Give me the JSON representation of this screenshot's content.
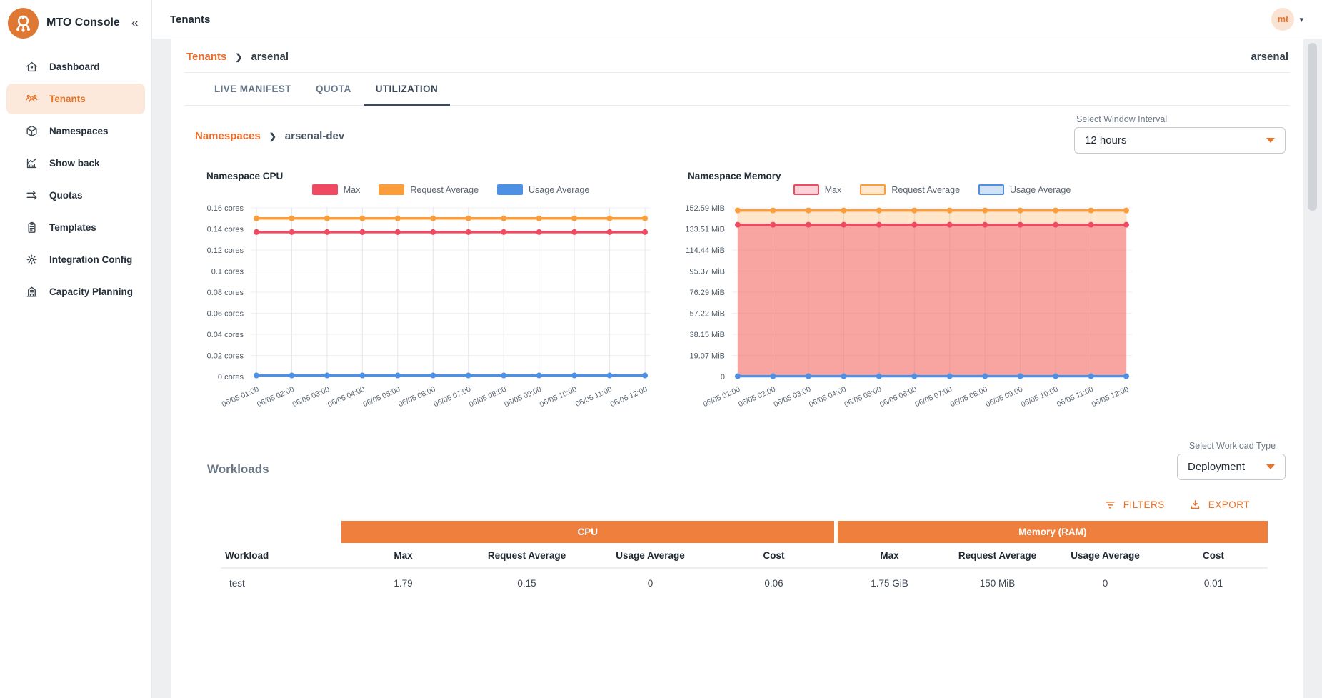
{
  "app": {
    "name": "MTO Console",
    "collapse_glyph": "«"
  },
  "topbar": {
    "title": "Tenants",
    "avatar": "mt",
    "caret": "▾"
  },
  "sidebar": {
    "items": [
      {
        "label": "Dashboard",
        "icon": "home-icon"
      },
      {
        "label": "Tenants",
        "icon": "users-icon",
        "active": true
      },
      {
        "label": "Namespaces",
        "icon": "cube-icon"
      },
      {
        "label": "Show back",
        "icon": "chart-icon"
      },
      {
        "label": "Quotas",
        "icon": "arrows-icon"
      },
      {
        "label": "Templates",
        "icon": "clipboard-icon"
      },
      {
        "label": "Integration Config",
        "icon": "gear-icon"
      },
      {
        "label": "Capacity Planning",
        "icon": "building-icon"
      }
    ]
  },
  "breadcrumb": {
    "parent": "Tenants",
    "separator": "❯",
    "current": "arsenal",
    "context": "arsenal"
  },
  "tabs": [
    {
      "label": "LIVE MANIFEST"
    },
    {
      "label": "QUOTA"
    },
    {
      "label": "UTILIZATION",
      "active": true
    }
  ],
  "namespace_breadcrumb": {
    "parent": "Namespaces",
    "separator": "❯",
    "current": "arsenal-dev"
  },
  "window_interval": {
    "label": "Select Window Interval",
    "value": "12 hours"
  },
  "colors": {
    "accent": "#e8732a",
    "table_header": "#ef7f3c",
    "max": "#F04A63",
    "request_average": "#FA9E3D",
    "usage_average": "#4D90E4",
    "active_bg": "#fce9dc"
  },
  "chart_data": [
    {
      "type": "line",
      "title": "Namespace CPU",
      "legend_style": "solid",
      "legend_position": "top",
      "grid": true,
      "ymax": 0.16,
      "ytick_labels": [
        "0.16 cores",
        "0.14 cores",
        "0.12 cores",
        "0.1 cores",
        "0.08 cores",
        "0.06 cores",
        "0.04 cores",
        "0.02 cores",
        "0 cores"
      ],
      "x": [
        "06/05 01:00",
        "06/05 02:00",
        "06/05 03:00",
        "06/05 04:00",
        "06/05 05:00",
        "06/05 06:00",
        "06/05 07:00",
        "06/05 08:00",
        "06/05 09:00",
        "06/05 10:00",
        "06/05 11:00",
        "06/05 12:00"
      ],
      "series": [
        {
          "name": "Max",
          "color": "#F04A63",
          "values": [
            0.137,
            0.137,
            0.137,
            0.137,
            0.137,
            0.137,
            0.137,
            0.137,
            0.137,
            0.137,
            0.137,
            0.137
          ]
        },
        {
          "name": "Request Average",
          "color": "#FA9E3D",
          "values": [
            0.15,
            0.15,
            0.15,
            0.15,
            0.15,
            0.15,
            0.15,
            0.15,
            0.15,
            0.15,
            0.15,
            0.15
          ]
        },
        {
          "name": "Usage Average",
          "color": "#4D90E4",
          "values": [
            0.001,
            0.001,
            0.001,
            0.001,
            0.001,
            0.001,
            0.001,
            0.001,
            0.001,
            0.001,
            0.001,
            0.001
          ]
        }
      ]
    },
    {
      "type": "area",
      "title": "Namespace Memory",
      "legend_style": "outline",
      "legend_position": "top",
      "grid": true,
      "ymax": 152.59,
      "ytick_labels": [
        "152.59 MiB",
        "133.51 MiB",
        "114.44 MiB",
        "95.37 MiB",
        "76.29 MiB",
        "57.22 MiB",
        "38.15 MiB",
        "19.07 MiB",
        "0"
      ],
      "x": [
        "06/05 01:00",
        "06/05 02:00",
        "06/05 03:00",
        "06/05 04:00",
        "06/05 05:00",
        "06/05 06:00",
        "06/05 07:00",
        "06/05 08:00",
        "06/05 09:00",
        "06/05 10:00",
        "06/05 11:00",
        "06/05 12:00"
      ],
      "series": [
        {
          "name": "Max",
          "color": "#F04A63",
          "fill_alpha": 0.42,
          "values": [
            137.3,
            137.3,
            137.3,
            137.3,
            137.3,
            137.3,
            137.3,
            137.3,
            137.3,
            137.3,
            137.3,
            137.3
          ]
        },
        {
          "name": "Request Average",
          "color": "#FA9E3D",
          "fill_alpha": 0.26,
          "values": [
            150.25,
            150.25,
            150.25,
            150.25,
            150.25,
            150.25,
            150.25,
            150.25,
            150.25,
            150.25,
            150.25,
            150.25
          ]
        },
        {
          "name": "Usage Average",
          "color": "#4D90E4",
          "fill_alpha": 0.35,
          "values": [
            0.3,
            0.3,
            0.3,
            0.3,
            0.3,
            0.3,
            0.3,
            0.3,
            0.3,
            0.3,
            0.3,
            0.3
          ]
        }
      ]
    }
  ],
  "workloads": {
    "title": "Workloads",
    "type_label": "Select Workload Type",
    "type_value": "Deployment",
    "filters": "FILTERS",
    "export": "EXPORT"
  },
  "table": {
    "groups": [
      "CPU",
      "Memory (RAM)"
    ],
    "columns": [
      "Workload",
      "Max",
      "Request Average",
      "Usage Average",
      "Cost",
      "Max",
      "Request Average",
      "Usage Average",
      "Cost"
    ],
    "rows": [
      [
        "test",
        "1.79",
        "0.15",
        "0",
        "0.06",
        "1.75 GiB",
        "150 MiB",
        "0",
        "0.01"
      ]
    ]
  }
}
